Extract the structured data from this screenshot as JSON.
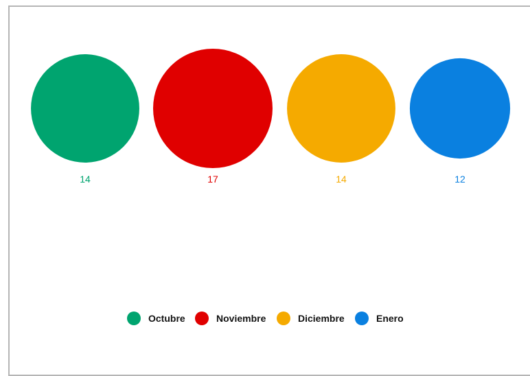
{
  "chart_data": {
    "type": "bubble",
    "title": "",
    "xlabel": "",
    "ylabel": "",
    "categories": [
      "Octubre",
      "Noviembre",
      "Diciembre",
      "Enero"
    ],
    "values": [
      14,
      17,
      14,
      12
    ],
    "colors": [
      "#00a46f",
      "#e00000",
      "#f5aa00",
      "#0a80e0"
    ],
    "legend": {
      "position": "bottom",
      "entries": [
        "Octubre",
        "Noviembre",
        "Diciembre",
        "Enero"
      ]
    },
    "grid": false
  }
}
